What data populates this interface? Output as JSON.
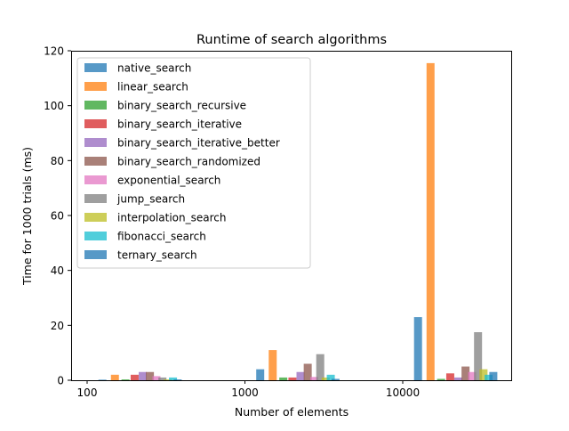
{
  "chart_data": {
    "type": "bar",
    "title": "Runtime of search algorithms",
    "xlabel": "Number of elements",
    "ylabel": "Time for 1000 trials (ms)",
    "xscale": "log",
    "categories": [
      "100",
      "1000",
      "10000"
    ],
    "xticks": [
      "100",
      "1000",
      "10000"
    ],
    "yticks": [
      "0",
      "20",
      "40",
      "60",
      "80",
      "100",
      "120"
    ],
    "ylim": [
      0,
      120
    ],
    "grid": false,
    "legend_position": "top-left",
    "series": [
      {
        "name": "native_search",
        "color": "#1f77b4",
        "values": [
          0.2,
          4.0,
          23.0
        ]
      },
      {
        "name": "linear_search",
        "color": "#ff7f0e",
        "values": [
          2.0,
          11.0,
          115.5
        ]
      },
      {
        "name": "binary_search_recursive",
        "color": "#2ca02c",
        "values": [
          0.3,
          1.0,
          0.5
        ]
      },
      {
        "name": "binary_search_iterative",
        "color": "#d62728",
        "values": [
          2.0,
          1.0,
          2.5
        ]
      },
      {
        "name": "binary_search_iterative_better",
        "color": "#9467bd",
        "values": [
          3.0,
          3.0,
          1.0
        ]
      },
      {
        "name": "binary_search_randomized",
        "color": "#8c564b",
        "values": [
          3.0,
          6.0,
          5.0
        ]
      },
      {
        "name": "exponential_search",
        "color": "#e377c2",
        "values": [
          1.5,
          1.2,
          3.0
        ]
      },
      {
        "name": "jump_search",
        "color": "#7f7f7f",
        "values": [
          1.0,
          9.5,
          17.5
        ]
      },
      {
        "name": "interpolation_search",
        "color": "#bcbd22",
        "values": [
          0.3,
          1.0,
          4.0
        ]
      },
      {
        "name": "fibonacci_search",
        "color": "#17becf",
        "values": [
          1.0,
          2.0,
          2.0
        ]
      },
      {
        "name": "ternary_search",
        "color": "#1f77b4",
        "values": [
          0.3,
          0.5,
          3.0
        ]
      }
    ]
  }
}
